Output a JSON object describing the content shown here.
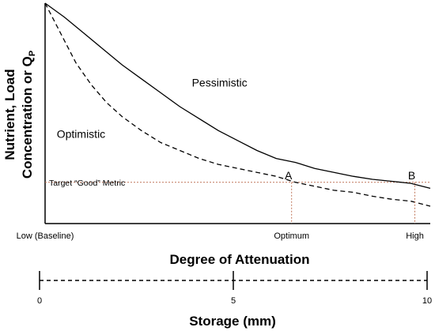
{
  "chart_data": [
    {
      "type": "line",
      "ylabel_line1": "Nutrient, Load",
      "ylabel_line2_prefix": "Concentration or Q",
      "ylabel_line2_sub": "P",
      "xlabel": "Degree of Attenuation",
      "x_tick_labels": [
        {
          "text": "Low (Baseline)",
          "x": 0.0
        },
        {
          "text": "Optimum",
          "x": 0.64
        },
        {
          "text": "High",
          "x": 0.96
        }
      ],
      "xlim": [
        0,
        1
      ],
      "ylim": [
        0,
        1
      ],
      "series": [
        {
          "name": "Pessimistic",
          "style": "solid",
          "x": [
            0.0,
            0.05,
            0.1,
            0.15,
            0.2,
            0.25,
            0.3,
            0.35,
            0.4,
            0.45,
            0.5,
            0.55,
            0.6,
            0.65,
            0.7,
            0.75,
            0.8,
            0.85,
            0.9,
            0.95,
            1.0
          ],
          "y": [
            1.0,
            0.93,
            0.85,
            0.77,
            0.69,
            0.62,
            0.55,
            0.48,
            0.42,
            0.36,
            0.31,
            0.26,
            0.22,
            0.2,
            0.17,
            0.15,
            0.13,
            0.115,
            0.105,
            0.095,
            0.07
          ]
        },
        {
          "name": "Optimistic",
          "style": "dashed",
          "x": [
            0.0,
            0.04,
            0.08,
            0.12,
            0.16,
            0.2,
            0.25,
            0.3,
            0.35,
            0.4,
            0.45,
            0.5,
            0.55,
            0.6,
            0.65,
            0.7,
            0.75,
            0.8,
            0.85,
            0.9,
            0.95,
            1.0
          ],
          "y": [
            1.0,
            0.85,
            0.7,
            0.59,
            0.5,
            0.43,
            0.36,
            0.3,
            0.26,
            0.22,
            0.19,
            0.17,
            0.15,
            0.13,
            0.1,
            0.08,
            0.06,
            0.05,
            0.03,
            0.015,
            0.005,
            -0.02
          ]
        }
      ],
      "series_labels": [
        {
          "series": "Pessimistic",
          "x": 0.34,
          "y": 0.55
        },
        {
          "series": "Optimistic",
          "x": 0.02,
          "y": 0.32
        }
      ],
      "reference_line": {
        "label": "Target “Good” Metric",
        "y": 0.1,
        "color": "#c0775a"
      },
      "points": [
        {
          "label": "A",
          "x": 0.64,
          "y": 0.1
        },
        {
          "label": "B",
          "x": 0.96,
          "y": 0.1
        }
      ]
    },
    {
      "type": "axis",
      "xlabel": "Storage (mm)",
      "xlim": [
        0,
        10
      ],
      "ticks": [
        0,
        5,
        10
      ],
      "tick_labels": [
        "0",
        "5",
        "10"
      ]
    }
  ]
}
